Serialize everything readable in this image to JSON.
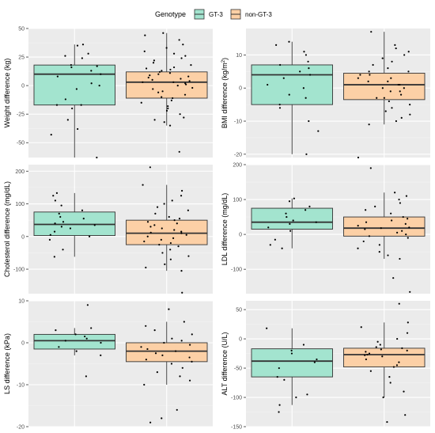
{
  "legend": {
    "title": "Genotype",
    "items": [
      {
        "label": "GT-3",
        "fill": "#a3e4cf"
      },
      {
        "label": "non-GT-3",
        "fill": "#fcd0a6"
      }
    ]
  },
  "colors": {
    "panel_bg": "#ebebeb",
    "grid_major": "#ffffff",
    "box_line": "#333333",
    "point": "#000000",
    "gt3_fill": "#a3e4cf",
    "nongt3_fill": "#fcd0a6"
  },
  "chart_data": [
    {
      "type": "box",
      "ylabel": "Weight difference (kg)",
      "ylabel_sup": "",
      "ylim": [
        -63,
        50
      ],
      "yticks": [
        -50,
        -25,
        0,
        25,
        50
      ],
      "series": [
        {
          "name": "GT-3",
          "q1": -17,
          "median": 10,
          "q3": 18,
          "whisker_low": -63,
          "whisker_high": 36,
          "points": [
            -63,
            -43,
            -38,
            -30,
            -20,
            -17,
            -17,
            -12,
            -3,
            0,
            2,
            8,
            10,
            13,
            16,
            17,
            18,
            24,
            26,
            28,
            35,
            36
          ]
        },
        {
          "name": "non-GT-3",
          "q1": -11,
          "median": 3,
          "q3": 12,
          "whisker_low": -35,
          "whisker_high": 46,
          "points": [
            -58,
            -35,
            -32,
            -30,
            -28,
            -25,
            -22,
            -20,
            -18,
            -15,
            -13,
            -11,
            -10,
            -8,
            -6,
            -5,
            -3,
            -2,
            0,
            1,
            2,
            3,
            3,
            4,
            5,
            6,
            7,
            8,
            9,
            10,
            11,
            12,
            13,
            14,
            15,
            16,
            18,
            20,
            22,
            24,
            26,
            28,
            30,
            33,
            36,
            40,
            44,
            46
          ]
        }
      ]
    },
    {
      "type": "box",
      "ylabel": "BMI difference (kg/m",
      "ylabel_sup": "2",
      "ylabel_tail": ")",
      "ylim": [
        -21,
        18
      ],
      "yticks": [
        -20,
        -10,
        0,
        10
      ],
      "series": [
        {
          "name": "GT-3",
          "q1": -5,
          "median": 4,
          "q3": 7,
          "whisker_low": -20,
          "whisker_high": 14,
          "points": [
            -20,
            -13,
            -10,
            -6,
            -5,
            -3,
            -2,
            0,
            1,
            3,
            4,
            5,
            6,
            7,
            8,
            10,
            11,
            13,
            14
          ]
        },
        {
          "name": "non-GT-3",
          "q1": -3.5,
          "median": 1,
          "q3": 4.5,
          "whisker_low": -11,
          "whisker_high": 17,
          "points": [
            -21,
            -11,
            -10,
            -9,
            -8,
            -7,
            -6,
            -5,
            -4,
            -3,
            -3,
            -2,
            -1,
            -1,
            0,
            0,
            1,
            1,
            2,
            2,
            3,
            3,
            4,
            4,
            5,
            5,
            6,
            7,
            8,
            9,
            10,
            11,
            12,
            13,
            17
          ]
        }
      ]
    },
    {
      "type": "box",
      "ylabel": "Cholesterol difference (mg/dL)",
      "ylabel_sup": "",
      "ylim": [
        -175,
        220
      ],
      "yticks": [
        -100,
        0,
        100,
        200
      ],
      "series": [
        {
          "name": "GT-3",
          "q1": 3,
          "median": 37,
          "q3": 75,
          "whisker_low": -62,
          "whisker_high": 133,
          "points": [
            -62,
            -40,
            -10,
            0,
            5,
            15,
            25,
            30,
            35,
            40,
            45,
            55,
            60,
            70,
            80,
            95,
            110,
            125,
            133
          ]
        },
        {
          "name": "non-GT-3",
          "q1": -25,
          "median": 10,
          "q3": 50,
          "whisker_low": -105,
          "whisker_high": 158,
          "points": [
            -172,
            -105,
            -95,
            -85,
            -70,
            -60,
            -50,
            -40,
            -30,
            -25,
            -20,
            -15,
            -10,
            -5,
            0,
            5,
            10,
            12,
            15,
            20,
            25,
            30,
            35,
            40,
            45,
            50,
            55,
            60,
            70,
            80,
            90,
            100,
            110,
            125,
            140,
            158,
            212
          ]
        }
      ]
    },
    {
      "type": "box",
      "ylabel": "LDL difference (mg/dL)",
      "ylabel_sup": "",
      "ylim": [
        -170,
        200
      ],
      "yticks": [
        -100,
        0,
        100,
        200
      ],
      "series": [
        {
          "name": "GT-3",
          "q1": 15,
          "median": 35,
          "q3": 75,
          "whisker_low": -40,
          "whisker_high": 103,
          "points": [
            -40,
            -30,
            -15,
            10,
            20,
            30,
            35,
            40,
            50,
            60,
            70,
            80,
            95,
            103
          ]
        },
        {
          "name": "non-GT-3",
          "q1": -5,
          "median": 18,
          "q3": 50,
          "whisker_low": -70,
          "whisker_high": 120,
          "points": [
            -165,
            -125,
            -70,
            -60,
            -50,
            -40,
            -30,
            -20,
            -10,
            -5,
            0,
            5,
            10,
            15,
            18,
            20,
            25,
            30,
            35,
            40,
            45,
            50,
            60,
            70,
            80,
            90,
            100,
            110,
            120,
            190
          ]
        }
      ]
    },
    {
      "type": "box",
      "ylabel": "LS difference (kPa)",
      "ylabel_sup": "",
      "ylim": [
        -20,
        10
      ],
      "yticks": [
        -20,
        -10,
        0,
        10
      ],
      "series": [
        {
          "name": "GT-3",
          "q1": -1.5,
          "median": 0.5,
          "q3": 2,
          "whisker_low": -3,
          "whisker_high": 3.5,
          "points": [
            -8,
            -3,
            -2,
            -1,
            0,
            0.5,
            1,
            1.5,
            2,
            3,
            3.5,
            9
          ]
        },
        {
          "name": "non-GT-3",
          "q1": -4.5,
          "median": -2,
          "q3": 0,
          "whisker_low": -10,
          "whisker_high": 5,
          "points": [
            -19,
            -18,
            -16,
            -10,
            -9,
            -8,
            -7,
            -6,
            -5,
            -4.5,
            -4,
            -3.5,
            -3,
            -2.5,
            -2,
            -1.5,
            -1,
            -0.5,
            0,
            0.5,
            1,
            2,
            3,
            4,
            5,
            8
          ]
        }
      ]
    },
    {
      "type": "box",
      "ylabel": "ALT difference (U/L)",
      "ylabel_sup": "",
      "ylim": [
        -150,
        65
      ],
      "yticks": [
        -150,
        -100,
        -50,
        0,
        50
      ],
      "series": [
        {
          "name": "GT-3",
          "q1": -65,
          "median": -38,
          "q3": -17,
          "whisker_low": -113,
          "whisker_high": 18,
          "points": [
            -125,
            -113,
            -100,
            -95,
            -70,
            -65,
            -50,
            -40,
            -35,
            -25,
            -20,
            -10,
            18
          ]
        },
        {
          "name": "non-GT-3",
          "q1": -48,
          "median": -27,
          "q3": -16,
          "whisker_low": -100,
          "whisker_high": 28,
          "points": [
            -142,
            -130,
            -100,
            -90,
            -75,
            -65,
            -55,
            -48,
            -45,
            -40,
            -35,
            -30,
            -28,
            -27,
            -25,
            -22,
            -20,
            -18,
            -16,
            -14,
            -10,
            -5,
            0,
            10,
            20,
            28,
            60
          ]
        }
      ]
    }
  ]
}
